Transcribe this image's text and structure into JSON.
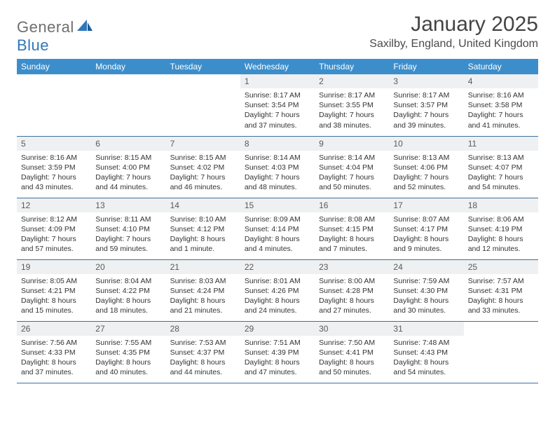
{
  "brand": {
    "word1": "General",
    "word2": "Blue"
  },
  "title": "January 2025",
  "location": "Saxilby, England, United Kingdom",
  "colors": {
    "header_bg": "#3c8ecb",
    "header_text": "#ffffff",
    "daynum_bg": "#eef0f1",
    "rule": "#3c6ea0",
    "brand_gray": "#6f6f6f",
    "brand_blue": "#2f77bb"
  },
  "weekdays": [
    "Sunday",
    "Monday",
    "Tuesday",
    "Wednesday",
    "Thursday",
    "Friday",
    "Saturday"
  ],
  "weeks": [
    [
      null,
      null,
      null,
      {
        "n": "1",
        "sunrise": "8:17 AM",
        "sunset": "3:54 PM",
        "day_h": "7",
        "day_m": "37"
      },
      {
        "n": "2",
        "sunrise": "8:17 AM",
        "sunset": "3:55 PM",
        "day_h": "7",
        "day_m": "38"
      },
      {
        "n": "3",
        "sunrise": "8:17 AM",
        "sunset": "3:57 PM",
        "day_h": "7",
        "day_m": "39"
      },
      {
        "n": "4",
        "sunrise": "8:16 AM",
        "sunset": "3:58 PM",
        "day_h": "7",
        "day_m": "41"
      }
    ],
    [
      {
        "n": "5",
        "sunrise": "8:16 AM",
        "sunset": "3:59 PM",
        "day_h": "7",
        "day_m": "43"
      },
      {
        "n": "6",
        "sunrise": "8:15 AM",
        "sunset": "4:00 PM",
        "day_h": "7",
        "day_m": "44"
      },
      {
        "n": "7",
        "sunrise": "8:15 AM",
        "sunset": "4:02 PM",
        "day_h": "7",
        "day_m": "46"
      },
      {
        "n": "8",
        "sunrise": "8:14 AM",
        "sunset": "4:03 PM",
        "day_h": "7",
        "day_m": "48"
      },
      {
        "n": "9",
        "sunrise": "8:14 AM",
        "sunset": "4:04 PM",
        "day_h": "7",
        "day_m": "50"
      },
      {
        "n": "10",
        "sunrise": "8:13 AM",
        "sunset": "4:06 PM",
        "day_h": "7",
        "day_m": "52"
      },
      {
        "n": "11",
        "sunrise": "8:13 AM",
        "sunset": "4:07 PM",
        "day_h": "7",
        "day_m": "54"
      }
    ],
    [
      {
        "n": "12",
        "sunrise": "8:12 AM",
        "sunset": "4:09 PM",
        "day_h": "7",
        "day_m": "57"
      },
      {
        "n": "13",
        "sunrise": "8:11 AM",
        "sunset": "4:10 PM",
        "day_h": "7",
        "day_m": "59"
      },
      {
        "n": "14",
        "sunrise": "8:10 AM",
        "sunset": "4:12 PM",
        "day_h": "8",
        "day_m": "1",
        "minute_word": "minute"
      },
      {
        "n": "15",
        "sunrise": "8:09 AM",
        "sunset": "4:14 PM",
        "day_h": "8",
        "day_m": "4"
      },
      {
        "n": "16",
        "sunrise": "8:08 AM",
        "sunset": "4:15 PM",
        "day_h": "8",
        "day_m": "7"
      },
      {
        "n": "17",
        "sunrise": "8:07 AM",
        "sunset": "4:17 PM",
        "day_h": "8",
        "day_m": "9"
      },
      {
        "n": "18",
        "sunrise": "8:06 AM",
        "sunset": "4:19 PM",
        "day_h": "8",
        "day_m": "12"
      }
    ],
    [
      {
        "n": "19",
        "sunrise": "8:05 AM",
        "sunset": "4:21 PM",
        "day_h": "8",
        "day_m": "15"
      },
      {
        "n": "20",
        "sunrise": "8:04 AM",
        "sunset": "4:22 PM",
        "day_h": "8",
        "day_m": "18"
      },
      {
        "n": "21",
        "sunrise": "8:03 AM",
        "sunset": "4:24 PM",
        "day_h": "8",
        "day_m": "21"
      },
      {
        "n": "22",
        "sunrise": "8:01 AM",
        "sunset": "4:26 PM",
        "day_h": "8",
        "day_m": "24"
      },
      {
        "n": "23",
        "sunrise": "8:00 AM",
        "sunset": "4:28 PM",
        "day_h": "8",
        "day_m": "27"
      },
      {
        "n": "24",
        "sunrise": "7:59 AM",
        "sunset": "4:30 PM",
        "day_h": "8",
        "day_m": "30"
      },
      {
        "n": "25",
        "sunrise": "7:57 AM",
        "sunset": "4:31 PM",
        "day_h": "8",
        "day_m": "33"
      }
    ],
    [
      {
        "n": "26",
        "sunrise": "7:56 AM",
        "sunset": "4:33 PM",
        "day_h": "8",
        "day_m": "37"
      },
      {
        "n": "27",
        "sunrise": "7:55 AM",
        "sunset": "4:35 PM",
        "day_h": "8",
        "day_m": "40"
      },
      {
        "n": "28",
        "sunrise": "7:53 AM",
        "sunset": "4:37 PM",
        "day_h": "8",
        "day_m": "44"
      },
      {
        "n": "29",
        "sunrise": "7:51 AM",
        "sunset": "4:39 PM",
        "day_h": "8",
        "day_m": "47"
      },
      {
        "n": "30",
        "sunrise": "7:50 AM",
        "sunset": "4:41 PM",
        "day_h": "8",
        "day_m": "50"
      },
      {
        "n": "31",
        "sunrise": "7:48 AM",
        "sunset": "4:43 PM",
        "day_h": "8",
        "day_m": "54"
      },
      null
    ]
  ],
  "labels": {
    "sunrise_prefix": "Sunrise: ",
    "sunset_prefix": "Sunset: ",
    "daylight_prefix": "Daylight: ",
    "hours_word": " hours",
    "and_word": "and ",
    "minutes_word": " minutes."
  }
}
